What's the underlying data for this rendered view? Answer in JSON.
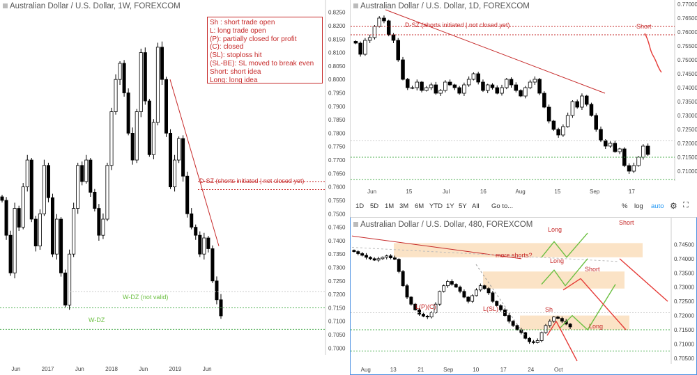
{
  "panels": {
    "weekly": {
      "title": "Australian Dollar / U.S. Dollar, 1W, FOREXCOM",
      "y_ticks": [
        "0.8250",
        "0.8200",
        "0.8150",
        "0.8100",
        "0.8050",
        "0.8000",
        "0.7950",
        "0.7900",
        "0.7850",
        "0.7800",
        "0.7750",
        "0.7700",
        "0.7650",
        "0.7600",
        "0.7550",
        "0.7500",
        "0.7450",
        "0.7400",
        "0.7350",
        "0.7300",
        "0.7250",
        "0.7200",
        "0.7150",
        "0.7100",
        "0.7050",
        "0.7000"
      ],
      "x_ticks": [
        "Jun",
        "2017",
        "Jun",
        "2018",
        "Jun",
        "2019",
        "Jun"
      ],
      "legend": [
        "Sh : short trade open",
        "L: long trade open",
        "(P): partially closed for profit",
        "(C): closed",
        "(SL): stoploss hit",
        "(SL-BE): SL moved to break even",
        "Short: short idea",
        "Long: long idea"
      ],
      "annotations": {
        "dsz": "D-SZ (shorts initiated | not closed yet)",
        "wdz_invalid": "W-DZ (not valid)",
        "wdz": "W-DZ"
      }
    },
    "daily": {
      "title": "Australian Dollar / U.S. Dollar, 1D, FOREXCOM",
      "y_ticks": [
        "0.77000",
        "0.76500",
        "0.76000",
        "0.75500",
        "0.75000",
        "0.74500",
        "0.74000",
        "0.73500",
        "0.73000",
        "0.72500",
        "0.72000",
        "0.71500",
        "0.71000"
      ],
      "x_ticks": [
        "Jun",
        "15",
        "Jul",
        "16",
        "Aug",
        "15",
        "Sep",
        "17"
      ],
      "annotations": {
        "dsz": "D-SZ (shorts initiated | not closed yet)",
        "short": "Short"
      }
    },
    "h8": {
      "title": "Australian Dollar / U.S. Dollar, 480, FOREXCOM",
      "y_ticks": [
        "0.74500",
        "0.74000",
        "0.73500",
        "0.73000",
        "0.72500",
        "0.72000",
        "0.71500",
        "0.71000",
        "0.70500"
      ],
      "x_ticks": [
        "Aug",
        "13",
        "21",
        "Sep",
        "10",
        "17",
        "24",
        "Oct"
      ],
      "annotations": {
        "long1": "Long",
        "long2": "Long",
        "long3": "Long",
        "more_shorts": "more shorts?",
        "short1": "Short",
        "short2": "Short",
        "lpc": "L(P)(C)",
        "lsl": "L(SL)",
        "sh": "Sh"
      }
    }
  },
  "toolbar": {
    "ranges": [
      "1D",
      "5D",
      "1M",
      "3M",
      "6M",
      "YTD",
      "1Y",
      "5Y",
      "All"
    ],
    "goto": "Go to...",
    "pct": "%",
    "log": "log",
    "auto": "auto"
  },
  "colors": {
    "bull": "#ffffff",
    "bear": "#000000",
    "trend": "#c62828",
    "zone_fill": "#fbe3c6",
    "green": "#6abf40",
    "dotted_green": "#4caf50",
    "dotted_red": "#c62828",
    "accent": "#2196f3"
  },
  "chart_data": [
    {
      "type": "candlestick",
      "title": "Australian Dollar / U.S. Dollar, 1W, FOREXCOM",
      "xlabel": "",
      "ylabel": "",
      "ylim": [
        0.6975,
        0.8275
      ],
      "x": [
        "Jun",
        "2017",
        "Jun",
        "2018",
        "Jun",
        "2019",
        "Jun"
      ],
      "closes_approx": [
        0.755,
        0.742,
        0.728,
        0.752,
        0.745,
        0.76,
        0.77,
        0.748,
        0.738,
        0.75,
        0.768,
        0.756,
        0.735,
        0.748,
        0.728,
        0.716,
        0.735,
        0.752,
        0.768,
        0.762,
        0.77,
        0.758,
        0.752,
        0.742,
        0.748,
        0.768,
        0.788,
        0.8,
        0.806,
        0.795,
        0.78,
        0.77,
        0.788,
        0.81,
        0.792,
        0.772,
        0.784,
        0.812,
        0.8,
        0.78,
        0.76,
        0.77,
        0.778,
        0.764,
        0.75,
        0.745,
        0.742,
        0.735,
        0.741,
        0.737,
        0.725,
        0.718,
        0.712
      ],
      "annotations": [
        "D-SZ (shorts initiated | not closed yet)",
        "W-DZ (not valid)",
        "W-DZ"
      ]
    },
    {
      "type": "candlestick",
      "title": "Australian Dollar / U.S. Dollar, 1D, FOREXCOM",
      "ylim": [
        0.7065,
        0.7705
      ],
      "x": [
        "Jun",
        "15",
        "Jul",
        "16",
        "Aug",
        "15",
        "Sep",
        "17"
      ],
      "closes_approx": [
        0.756,
        0.752,
        0.757,
        0.758,
        0.762,
        0.765,
        0.764,
        0.759,
        0.757,
        0.75,
        0.743,
        0.74,
        0.74,
        0.742,
        0.739,
        0.74,
        0.741,
        0.738,
        0.739,
        0.742,
        0.741,
        0.74,
        0.738,
        0.741,
        0.743,
        0.745,
        0.742,
        0.739,
        0.741,
        0.74,
        0.738,
        0.74,
        0.743,
        0.741,
        0.739,
        0.737,
        0.74,
        0.742,
        0.743,
        0.738,
        0.733,
        0.728,
        0.725,
        0.723,
        0.726,
        0.73,
        0.735,
        0.733,
        0.737,
        0.734,
        0.73,
        0.725,
        0.721,
        0.719,
        0.72,
        0.717,
        0.718,
        0.712,
        0.71,
        0.712,
        0.715,
        0.719,
        0.716
      ],
      "annotations": [
        "D-SZ (shorts initiated | not closed yet)",
        "Short"
      ]
    },
    {
      "type": "candlestick",
      "title": "Australian Dollar / U.S. Dollar, 480, FOREXCOM",
      "ylim": [
        0.703,
        0.75
      ],
      "x": [
        "Aug",
        "13",
        "21",
        "Sep",
        "10",
        "17",
        "24",
        "Oct"
      ],
      "closes_approx": [
        0.7425,
        0.7418,
        0.7412,
        0.7405,
        0.74,
        0.7395,
        0.74,
        0.7405,
        0.741,
        0.7403,
        0.7398,
        0.7355,
        0.7305,
        0.7265,
        0.724,
        0.722,
        0.7205,
        0.7198,
        0.7195,
        0.721,
        0.724,
        0.7285,
        0.7305,
        0.732,
        0.731,
        0.73,
        0.7285,
        0.7265,
        0.725,
        0.727,
        0.729,
        0.7305,
        0.7295,
        0.728,
        0.725,
        0.7235,
        0.722,
        0.72,
        0.718,
        0.7165,
        0.715,
        0.714,
        0.712,
        0.7108,
        0.7105,
        0.7112,
        0.714,
        0.7165,
        0.718,
        0.7195,
        0.719,
        0.718,
        0.717,
        0.716
      ],
      "annotations": [
        "Long",
        "Long",
        "Long",
        "more shorts?",
        "Short",
        "Short",
        "L(P)(C)",
        "L(SL)",
        "Sh"
      ]
    }
  ]
}
